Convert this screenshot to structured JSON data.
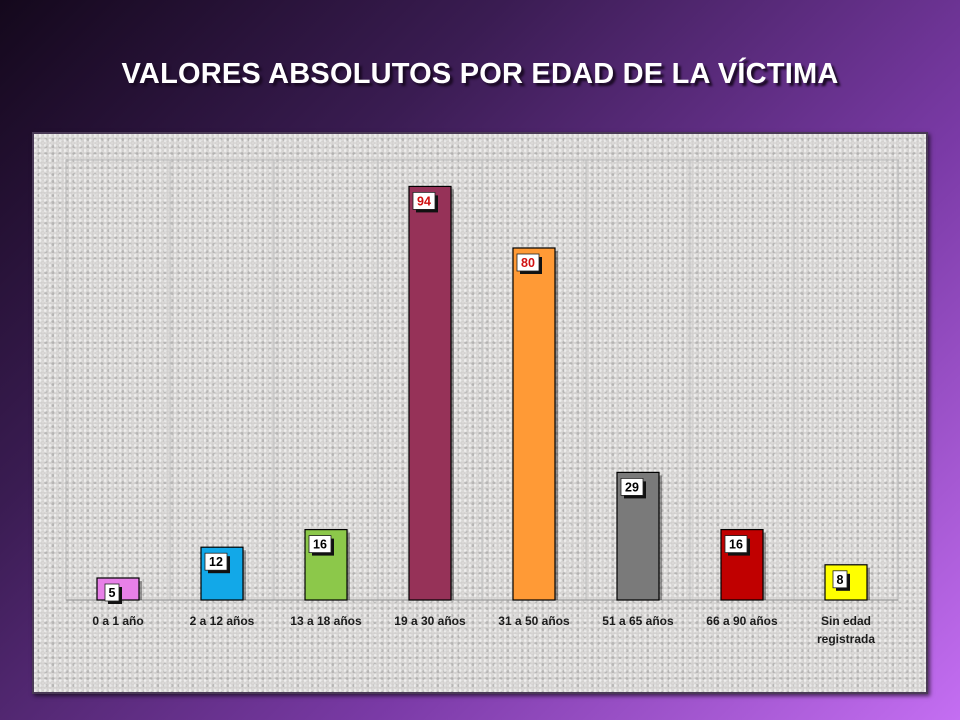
{
  "chart_data": {
    "type": "bar",
    "title": "VALORES ABSOLUTOS POR EDAD DE LA VÍCTIMA",
    "categories": [
      [
        "0 a 1 año"
      ],
      [
        "2 a 12 años"
      ],
      [
        "13 a 18 años"
      ],
      [
        "19 a 30 años"
      ],
      [
        "31 a 50 años"
      ],
      [
        "51 a 65 años"
      ],
      [
        "66 a 90 años"
      ],
      [
        "Sin edad",
        "registrada"
      ]
    ],
    "values": [
      5,
      12,
      16,
      94,
      80,
      29,
      16,
      8
    ],
    "colors": [
      "#e880e8",
      "#12a8e8",
      "#8cc84a",
      "#963258",
      "#ff9a36",
      "#7a7a7a",
      "#c00000",
      "#ffff00"
    ],
    "value_label_colors": [
      "#000000",
      "#000000",
      "#000000",
      "#d01010",
      "#d01010",
      "#000000",
      "#000000",
      "#000000"
    ],
    "ylim": [
      0,
      100
    ],
    "grid": "vertical"
  }
}
